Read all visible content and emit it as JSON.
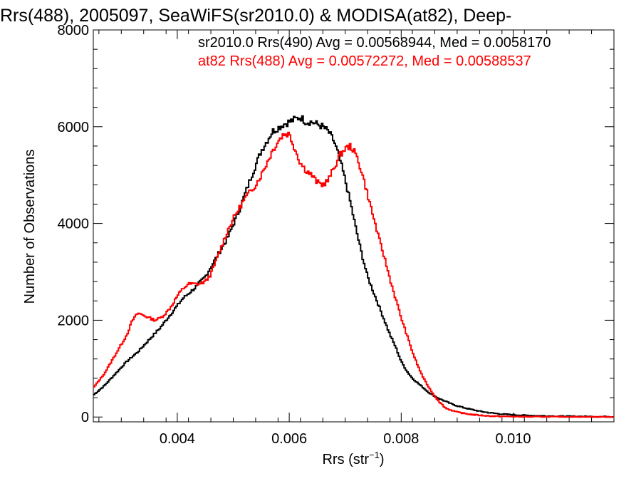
{
  "chart_data": {
    "type": "line",
    "title": "Rrs(488), 2005097, SeaWiFS(sr2010.0) & MODISA(at82), Deep-",
    "xlabel": "Rrs (str",
    "xlabel_sup": "−1",
    "xlabel_close": ")",
    "ylabel": "Number of Observations",
    "xlim": [
      0.0025,
      0.0118
    ],
    "ylim": [
      -100,
      8000
    ],
    "x_ticks": [
      0.004,
      0.006,
      0.008,
      0.01
    ],
    "x_tick_labels": [
      "0.004",
      "0.006",
      "0.008",
      "0.010"
    ],
    "y_ticks": [
      0,
      2000,
      4000,
      6000,
      8000
    ],
    "y_tick_labels": [
      "0",
      "2000",
      "4000",
      "6000",
      "8000"
    ],
    "grid": false,
    "legend_position": "top-right",
    "step_style": "histogram",
    "series": [
      {
        "name": "sr2010.0 Rrs(490) Avg = 0.00568944, Med = 0.0058170",
        "color": "#000000",
        "x": [
          0.0025,
          0.0027,
          0.0029,
          0.0031,
          0.0033,
          0.0035,
          0.0037,
          0.0039,
          0.0041,
          0.0043,
          0.0045,
          0.0047,
          0.0049,
          0.0051,
          0.0053,
          0.0055,
          0.0057,
          0.0059,
          0.006,
          0.0061,
          0.0062,
          0.0063,
          0.0064,
          0.0065,
          0.0066,
          0.0067,
          0.0068,
          0.0069,
          0.007,
          0.0071,
          0.0072,
          0.0073,
          0.0074,
          0.0075,
          0.0076,
          0.0077,
          0.0078,
          0.0079,
          0.008,
          0.0081,
          0.0082,
          0.0083,
          0.0084,
          0.0085,
          0.0086,
          0.0087,
          0.0088,
          0.0089,
          0.009,
          0.0092,
          0.0094,
          0.0096,
          0.0098,
          0.01,
          0.0102,
          0.0104,
          0.0106,
          0.0108,
          0.011,
          0.0112,
          0.0114,
          0.0116,
          0.0118
        ],
        "y": [
          450,
          650,
          900,
          1150,
          1350,
          1600,
          1850,
          2150,
          2450,
          2650,
          2900,
          3300,
          3700,
          4250,
          4900,
          5500,
          5900,
          6050,
          6100,
          6150,
          6200,
          6100,
          6100,
          6050,
          6000,
          5900,
          5700,
          5350,
          4900,
          4400,
          3850,
          3350,
          2900,
          2600,
          2300,
          2000,
          1700,
          1450,
          1150,
          950,
          800,
          700,
          600,
          500,
          430,
          370,
          320,
          270,
          230,
          170,
          120,
          85,
          60,
          45,
          35,
          28,
          22,
          18,
          14,
          12,
          10,
          8,
          6
        ]
      },
      {
        "name": "at82 Rrs(488) Avg = 0.00572272, Med = 0.00588537",
        "color": "#ff0000",
        "x": [
          0.0025,
          0.0027,
          0.0029,
          0.0031,
          0.0032,
          0.0033,
          0.0034,
          0.0035,
          0.0036,
          0.0037,
          0.0038,
          0.0039,
          0.004,
          0.0041,
          0.0042,
          0.0043,
          0.0044,
          0.0045,
          0.0046,
          0.0047,
          0.0048,
          0.0049,
          0.005,
          0.0051,
          0.0052,
          0.0053,
          0.0054,
          0.0055,
          0.0056,
          0.0057,
          0.0058,
          0.0059,
          0.006,
          0.0061,
          0.0062,
          0.0063,
          0.0064,
          0.0065,
          0.0066,
          0.0067,
          0.0068,
          0.0069,
          0.007,
          0.0071,
          0.0072,
          0.0073,
          0.0074,
          0.0075,
          0.0076,
          0.0077,
          0.0078,
          0.0079,
          0.008,
          0.0081,
          0.0082,
          0.0083,
          0.0084,
          0.0085,
          0.0086,
          0.0087,
          0.0088,
          0.009,
          0.0092,
          0.0094,
          0.0096,
          0.0098,
          0.01,
          0.0102,
          0.0104,
          0.0106,
          0.0108,
          0.011,
          0.0112,
          0.0114,
          0.0116,
          0.0118
        ],
        "y": [
          600,
          900,
          1300,
          1700,
          2000,
          2150,
          2100,
          2050,
          2000,
          2050,
          2150,
          2300,
          2500,
          2650,
          2750,
          2750,
          2750,
          2800,
          2950,
          3250,
          3550,
          3850,
          4100,
          4300,
          4500,
          4650,
          4800,
          5000,
          5250,
          5500,
          5700,
          5850,
          5850,
          5550,
          5250,
          5100,
          5000,
          4850,
          4800,
          4900,
          5150,
          5400,
          5550,
          5600,
          5400,
          5050,
          4600,
          4150,
          3700,
          3300,
          2850,
          2450,
          2050,
          1700,
          1350,
          1050,
          800,
          600,
          430,
          290,
          180,
          100,
          60,
          35,
          20,
          12,
          8,
          6,
          5,
          4,
          3,
          3,
          2,
          2,
          2,
          1
        ]
      }
    ]
  }
}
